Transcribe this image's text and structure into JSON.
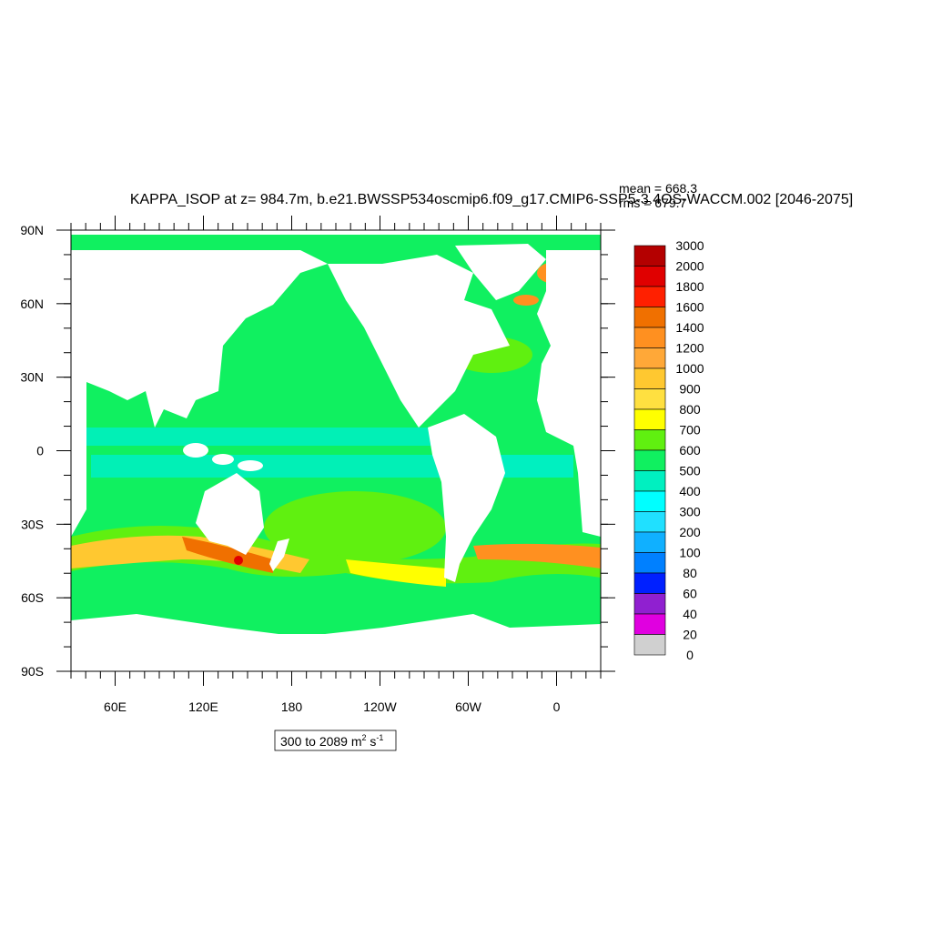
{
  "title": "KAPPA_ISOP at z= 984.7m, b.e21.BWSSP534oscmip6.f09_g17.CMIP6-SSP5-3.4OS-WACCM.002 [2046-2075]",
  "stats": {
    "mean": "mean = 668.3",
    "rms": "rms = 679.7"
  },
  "lat_ticks": [
    "90N",
    "60N",
    "30N",
    "0",
    "30S",
    "60S",
    "90S"
  ],
  "lon_ticks": [
    "60E",
    "120E",
    "180",
    "120W",
    "60W",
    "0"
  ],
  "colorbar": {
    "labels": [
      3000,
      2000,
      1800,
      1600,
      1400,
      1200,
      1000,
      900,
      800,
      700,
      600,
      500,
      400,
      300,
      200,
      100,
      80,
      60,
      40,
      20,
      0
    ],
    "colors": [
      "#b40000",
      "#e00000",
      "#ff2000",
      "#f07000",
      "#ff9020",
      "#ffa838",
      "#ffc830",
      "#ffe040",
      "#ffff00",
      "#60f010",
      "#10f060",
      "#00f0c0",
      "#00ffff",
      "#20e0ff",
      "#10b0ff",
      "#0080ff",
      "#0020ff",
      "#9020d0",
      "#e000e0",
      "#d0d0d0",
      "#707070"
    ]
  },
  "range_label": {
    "text": "300 to 2089 m",
    "sup1": "2",
    "mid": " s",
    "sup2": "-1"
  }
}
